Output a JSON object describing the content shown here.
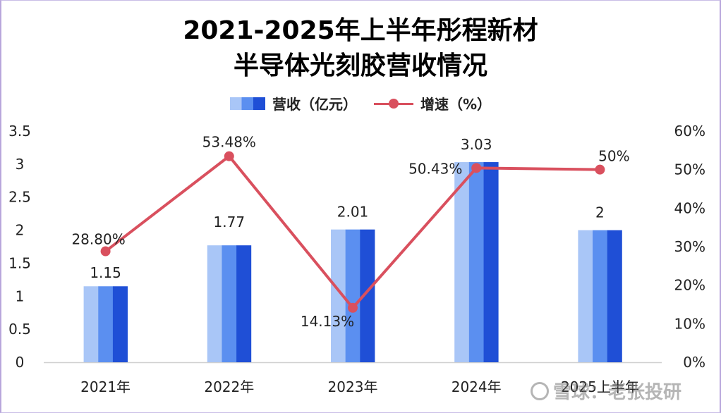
{
  "chart_data": {
    "type": "bar",
    "title_line1": "2021-2025年上半年彤程新材",
    "title_line2": "半导体光刻胶营收情况",
    "categories": [
      "2021年",
      "2022年",
      "2023年",
      "2024年",
      "2025上半年"
    ],
    "series": [
      {
        "name": "营收（亿元）",
        "type": "bar",
        "axis": "left",
        "values": [
          1.15,
          1.77,
          2.01,
          3.03,
          2
        ],
        "labels": [
          "1.15",
          "1.77",
          "2.01",
          "3.03",
          "2"
        ],
        "colors": [
          "#a9c6f7",
          "#5b8ff0",
          "#1f4fd6"
        ]
      },
      {
        "name": "增速（%）",
        "type": "line",
        "axis": "right",
        "values": [
          28.8,
          53.48,
          14.13,
          50.43,
          50
        ],
        "labels": [
          "28.80%",
          "53.48%",
          "14.13%",
          "50.43%",
          "50%"
        ],
        "color": "#d9505e"
      }
    ],
    "yleft": {
      "min": 0,
      "max": 3.5,
      "ticks": [
        "0",
        "0.5",
        "1",
        "1.5",
        "2",
        "2.5",
        "3",
        "3.5"
      ]
    },
    "yright": {
      "min": 0,
      "max": 60,
      "ticks": [
        "0%",
        "10%",
        "20%",
        "30%",
        "40%",
        "50%",
        "60%"
      ]
    },
    "grid": false,
    "legend": "top-center"
  },
  "watermark": {
    "text": "雪球：老张投研"
  }
}
